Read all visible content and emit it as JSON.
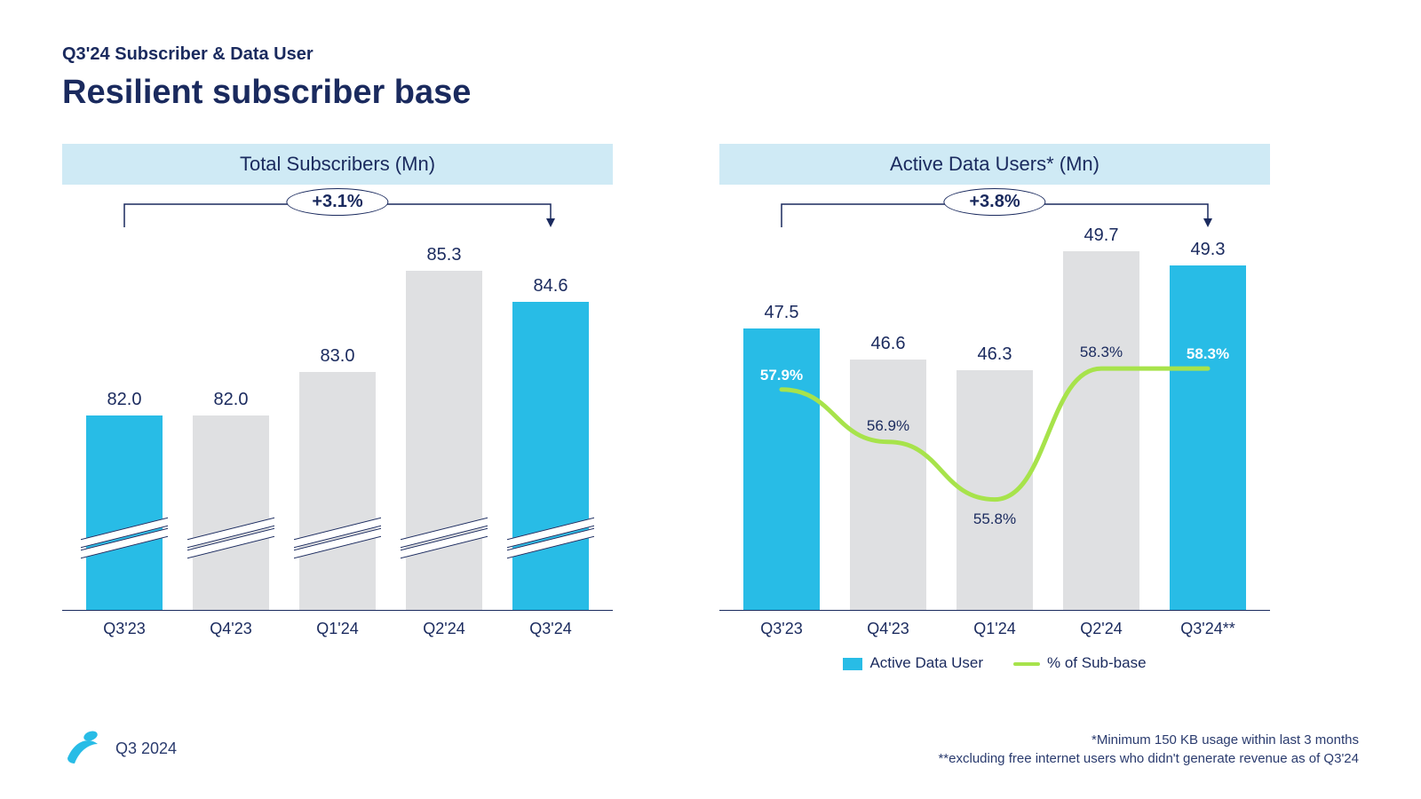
{
  "kicker": "Q3'24 Subscriber & Data User",
  "title": "Resilient subscriber base",
  "colors": {
    "accent": "#28bce6",
    "muted_bar": "#dfe0e2",
    "text": "#1a2a5e",
    "line": "#a7e34b",
    "header_bg": "#cfeaf5"
  },
  "left_chart": {
    "title": "Total Subscribers (Mn)",
    "type": "bar",
    "growth_label": "+3.1%",
    "ymin": 78,
    "ymax": 86,
    "axis_break": true,
    "categories": [
      "Q3'23",
      "Q4'23",
      "Q1'24",
      "Q2'24",
      "Q3'24"
    ],
    "values": [
      82.0,
      82.0,
      83.0,
      85.3,
      84.6
    ],
    "value_labels": [
      "82.0",
      "82.0",
      "83.0",
      "85.3",
      "84.6"
    ],
    "highlight": [
      true,
      false,
      false,
      false,
      true
    ],
    "bracket_from": 0,
    "bracket_to": 4
  },
  "right_chart": {
    "title": "Active Data Users* (Mn)",
    "type": "bar+line",
    "growth_label": "+3.8%",
    "ymin": 40,
    "ymax": 50,
    "axis_break": false,
    "categories": [
      "Q3'23",
      "Q4'23",
      "Q1'24",
      "Q2'24",
      "Q3'24**"
    ],
    "values": [
      47.5,
      46.6,
      46.3,
      49.7,
      49.3
    ],
    "value_labels": [
      "47.5",
      "46.6",
      "46.3",
      "49.7",
      "49.3"
    ],
    "highlight": [
      true,
      false,
      false,
      false,
      true
    ],
    "pct_labels": [
      "57.9%",
      "56.9%",
      "55.8%",
      "58.3%",
      "58.3%"
    ],
    "pct_values": [
      57.9,
      56.9,
      55.8,
      58.3,
      58.3
    ],
    "pct_min": 55,
    "pct_max": 59,
    "pct_label_onbar": [
      true,
      false,
      false,
      false,
      true
    ],
    "pct_label_below": [
      false,
      false,
      true,
      false,
      false
    ],
    "legend": {
      "bar": "Active Data User",
      "line": "% of Sub-base"
    },
    "bracket_from": 0,
    "bracket_to": 4
  },
  "footer": {
    "period": "Q3 2024",
    "notes": [
      "*Minimum 150 KB usage within last 3 months",
      "**excluding free internet users who didn't generate revenue as of Q3'24"
    ]
  }
}
